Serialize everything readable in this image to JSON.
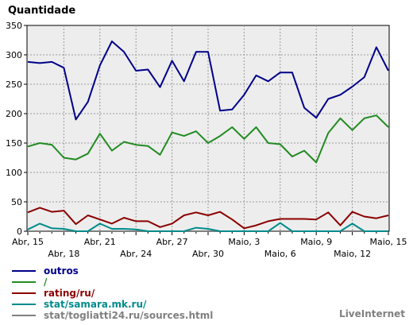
{
  "chart_data": {
    "type": "line",
    "title": "Quantidade",
    "ylim": [
      0,
      350
    ],
    "yticks": [
      0,
      50,
      100,
      150,
      200,
      250,
      300,
      350
    ],
    "grid": true,
    "legend_position": "bottom-left",
    "branding": "LiveInternet",
    "x_labels_row1": [
      "Abr, 15",
      "Abr, 21",
      "Abr, 27",
      "Maio, 3",
      "Maio, 9",
      "Maio, 15"
    ],
    "x_labels_row2": [
      "Abr, 18",
      "Abr, 24",
      "Abr, 30",
      "Maio, 6",
      "Maio, 12"
    ],
    "x": [
      "Abr, 15",
      "Abr, 16",
      "Abr, 17",
      "Abr, 18",
      "Abr, 19",
      "Abr, 20",
      "Abr, 21",
      "Abr, 22",
      "Abr, 23",
      "Abr, 24",
      "Abr, 25",
      "Abr, 26",
      "Abr, 27",
      "Abr, 28",
      "Abr, 29",
      "Abr, 30",
      "Maio, 1",
      "Maio, 2",
      "Maio, 3",
      "Maio, 4",
      "Maio, 5",
      "Maio, 6",
      "Maio, 7",
      "Maio, 8",
      "Maio, 9",
      "Maio, 10",
      "Maio, 11",
      "Maio, 12",
      "Maio, 13",
      "Maio, 14",
      "Maio, 15"
    ],
    "series": [
      {
        "name": "outros",
        "color": "#00008b",
        "values": [
          288,
          286,
          288,
          278,
          190,
          220,
          282,
          323,
          305,
          273,
          275,
          245,
          290,
          255,
          305,
          305,
          205,
          207,
          232,
          265,
          255,
          270,
          270,
          210,
          193,
          225,
          232,
          246,
          262,
          313,
          273
        ]
      },
      {
        "name": "/",
        "color": "#228b22",
        "values": [
          144,
          150,
          147,
          125,
          122,
          132,
          166,
          137,
          152,
          147,
          145,
          130,
          168,
          162,
          170,
          150,
          162,
          177,
          157,
          177,
          150,
          148,
          127,
          137,
          117,
          167,
          192,
          172,
          192,
          197,
          177
        ]
      },
      {
        "name": "rating/ru/",
        "color": "#8b0000",
        "values": [
          32,
          40,
          33,
          35,
          12,
          27,
          20,
          13,
          23,
          17,
          17,
          7,
          13,
          27,
          32,
          27,
          33,
          20,
          5,
          10,
          17,
          21,
          21,
          21,
          20,
          32,
          10,
          33,
          25,
          22,
          27
        ]
      },
      {
        "name": "stat/samara.mk.ru/",
        "color": "#008b8b",
        "values": [
          3,
          13,
          5,
          4,
          0,
          0,
          13,
          4,
          4,
          3,
          0,
          0,
          0,
          0,
          6,
          4,
          0,
          0,
          0,
          0,
          0,
          14,
          0,
          0,
          0,
          0,
          0,
          13,
          0,
          0,
          0
        ]
      },
      {
        "name": "stat/togliatti24.ru/sources.html",
        "color": "#808080",
        "values": [
          0,
          0,
          0,
          0,
          0,
          0,
          0,
          0,
          0,
          0,
          0,
          0,
          0,
          0,
          0,
          0,
          0,
          0,
          0,
          0,
          0,
          0,
          0,
          0,
          0,
          0,
          0,
          0,
          0,
          0,
          0
        ]
      }
    ]
  }
}
